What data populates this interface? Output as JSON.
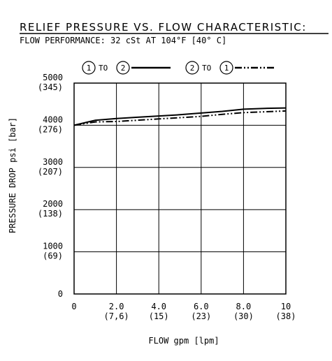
{
  "chart_data": {
    "type": "line",
    "title": "RELIEF PRESSURE VS. FLOW CHARACTERISTIC:",
    "subtitle": "FLOW PERFORMANCE: 32 cSt AT 104°F [40° C]",
    "xlabel": "FLOW gpm [lpm]",
    "ylabel": "PRESSURE DROP psi [bar]",
    "xlim": [
      0,
      10
    ],
    "ylim": [
      0,
      5000
    ],
    "grid": true,
    "legend_position": "top",
    "x_ticks": [
      {
        "value": 0,
        "label": "0",
        "sub": ""
      },
      {
        "value": 2,
        "label": "2.0",
        "sub": "(7,6)"
      },
      {
        "value": 4,
        "label": "4.0",
        "sub": "(15)"
      },
      {
        "value": 6,
        "label": "6.0",
        "sub": "(23)"
      },
      {
        "value": 8,
        "label": "8.0",
        "sub": "(30)"
      },
      {
        "value": 10,
        "label": "10",
        "sub": "(38)"
      }
    ],
    "y_ticks": [
      {
        "value": 0,
        "label": "0",
        "sub": ""
      },
      {
        "value": 1000,
        "label": "1000",
        "sub": "(69)"
      },
      {
        "value": 2000,
        "label": "2000",
        "sub": "(138)"
      },
      {
        "value": 3000,
        "label": "3000",
        "sub": "(207)"
      },
      {
        "value": 4000,
        "label": "4000",
        "sub": "(276)"
      },
      {
        "value": 5000,
        "label": "5000",
        "sub": "(345)"
      }
    ],
    "series": [
      {
        "legend_from": "1",
        "legend_to": "2",
        "legend_word": "TO",
        "style": "solid",
        "x": [
          0,
          1,
          2,
          3,
          4,
          5,
          6,
          7,
          8,
          9,
          10
        ],
        "y": [
          4000,
          4120,
          4160,
          4190,
          4220,
          4250,
          4290,
          4330,
          4380,
          4400,
          4410
        ]
      },
      {
        "legend_from": "2",
        "legend_to": "1",
        "legend_word": "TO",
        "style": "dash-dot-dot",
        "x": [
          0,
          1,
          2,
          3,
          4,
          5,
          6,
          7,
          8,
          9,
          10
        ],
        "y": [
          4000,
          4080,
          4090,
          4120,
          4150,
          4180,
          4210,
          4260,
          4300,
          4320,
          4340
        ]
      }
    ]
  },
  "colors": {
    "ink": "#000000",
    "background": "#ffffff"
  }
}
